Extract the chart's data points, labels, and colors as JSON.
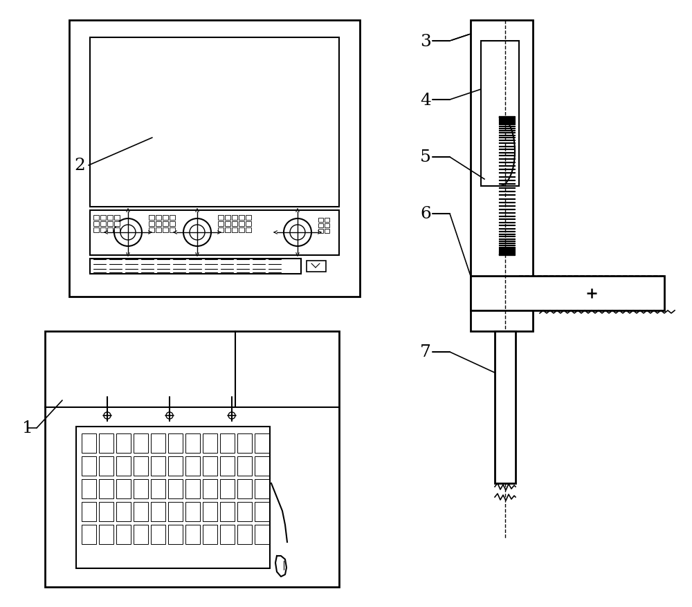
{
  "bg_color": "#ffffff",
  "line_color": "#000000",
  "fig_width": 10.0,
  "fig_height": 8.79,
  "dpi": 100
}
